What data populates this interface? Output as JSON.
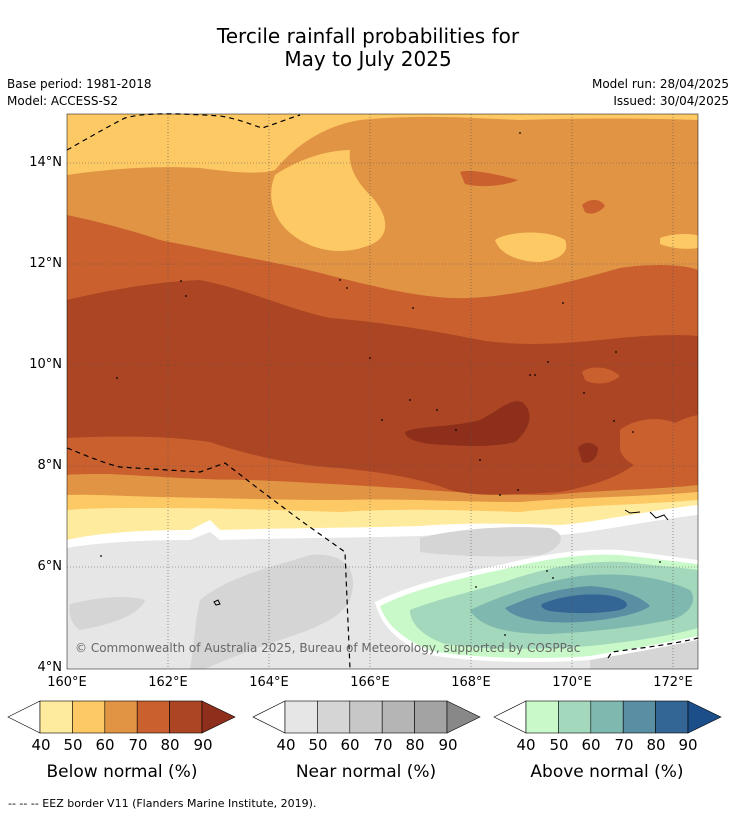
{
  "title": {
    "line1": "Tercile rainfall probabilities for",
    "line2": "May to July 2025"
  },
  "meta": {
    "base_period": "Base period: 1981-2018",
    "model": "Model: ACCESS-S2",
    "model_run": "Model run: 28/04/2025",
    "issued": "Issued: 30/04/2025"
  },
  "map": {
    "lat_ticks": [
      "14°N",
      "12°N",
      "10°N",
      "8°N",
      "6°N",
      "4°N"
    ],
    "lon_ticks": [
      "160°E",
      "162°E",
      "164°E",
      "166°E",
      "168°E",
      "170°E",
      "172°E"
    ],
    "copyright": "© Commonwealth of Australia 2025, Bureau of Meteorology, supported by COSPPac",
    "eez_border_style": "dashed",
    "eez_border_color": "#000000"
  },
  "colorbars": [
    {
      "title": "Below normal (%)",
      "ticks": [
        "40",
        "50",
        "60",
        "70",
        "80",
        "90"
      ],
      "colors": [
        "#ffffff",
        "#ffeb9e",
        "#fdc964",
        "#e19444",
        "#c9602e",
        "#ab4523",
        "#8e2f1c"
      ]
    },
    {
      "title": "Near normal (%)",
      "ticks": [
        "40",
        "50",
        "60",
        "70",
        "80",
        "90"
      ],
      "colors": [
        "#ffffff",
        "#e6e6e6",
        "#d5d5d5",
        "#c7c7c7",
        "#b5b5b5",
        "#a3a3a3",
        "#888888"
      ]
    },
    {
      "title": "Above normal (%)",
      "ticks": [
        "40",
        "50",
        "60",
        "70",
        "80",
        "90"
      ],
      "colors": [
        "#ffffff",
        "#c9f9c9",
        "#a3d8bd",
        "#7fb8ae",
        "#5a8fa3",
        "#336694",
        "#1c4f8a"
      ]
    }
  ],
  "footer": "--  --  -- EEZ border V11 (Flanders Marine Institute, 2019)."
}
